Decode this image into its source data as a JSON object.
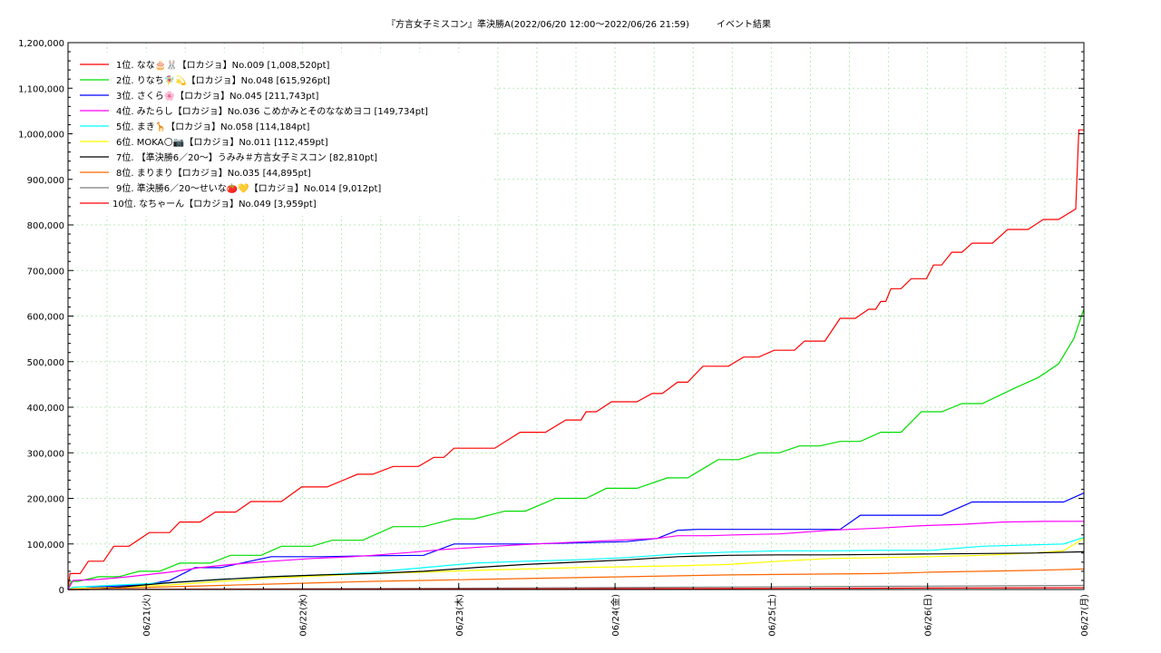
{
  "chart_data": {
    "type": "line",
    "title": "『方言女子ミスコン』準決勝A(2022/06/20 12:00～2022/06/26 21:59)　　　イベント結果",
    "xlabel": "",
    "ylabel": "",
    "ylim": [
      0,
      1200000
    ],
    "xlim": [
      "2022-06-20 12:00",
      "2022-06-27 00:00"
    ],
    "x_ticks": [
      "06/21(火)",
      "06/22(水)",
      "06/23(木)",
      "06/24(金)",
      "06/25(土)",
      "06/26(日)",
      "06/27(月)"
    ],
    "y_ticks": [
      "0",
      "100,000",
      "200,000",
      "300,000",
      "400,000",
      "500,000",
      "600,000",
      "700,000",
      "800,000",
      "900,000",
      "1,000,000",
      "1,100,000",
      "1,200,000"
    ],
    "grid": true,
    "legend_position": "top-left",
    "series": [
      {
        "name": "1位. なな🎂🐰【ロカジョ】No.009 [1,008,520pt]",
        "color": "#ff0000",
        "x": [
          0,
          0.02,
          0.12,
          0.2,
          0.35,
          0.45,
          0.6,
          0.8,
          1.0,
          1.1,
          1.3,
          1.45,
          1.65,
          1.8,
          2.1,
          2.3,
          2.55,
          2.85,
          3.0,
          3.2,
          3.45,
          3.6,
          3.7,
          3.8,
          4.2,
          4.45,
          4.7,
          4.9,
          5.05,
          5.1,
          5.2,
          5.35,
          5.6,
          5.75,
          5.85,
          6.0,
          6.1,
          6.25,
          6.5,
          6.65,
          6.8,
          6.95,
          7.15,
          7.25,
          7.45,
          7.6,
          7.75,
          7.88,
          7.95,
          8.0,
          8.05,
          8.1,
          8.2,
          8.3,
          8.45,
          8.52,
          8.6,
          8.7,
          8.8,
          8.9,
          9.1,
          9.25,
          9.45,
          9.6,
          9.75,
          9.92,
          9.95,
          10.0
        ],
        "y": [
          0,
          35000,
          35000,
          62000,
          62000,
          95000,
          95000,
          125000,
          125000,
          148000,
          148000,
          170000,
          170000,
          193000,
          193000,
          225000,
          225000,
          253000,
          253000,
          270000,
          270000,
          290000,
          290000,
          310000,
          310000,
          345000,
          345000,
          372000,
          372000,
          390000,
          390000,
          412000,
          412000,
          430000,
          430000,
          455000,
          455000,
          490000,
          490000,
          510000,
          510000,
          525000,
          525000,
          545000,
          545000,
          595000,
          595000,
          615000,
          615000,
          632000,
          632000,
          660000,
          660000,
          682000,
          682000,
          712000,
          712000,
          740000,
          740000,
          760000,
          760000,
          790000,
          790000,
          812000,
          812000,
          835000,
          1008520,
          1008520
        ]
      },
      {
        "name": "2位. りなち🧚‍♀️💫【ロカジョ】No.048 [615,926pt]",
        "color": "#00dd00",
        "x": [
          0,
          0.03,
          0.1,
          0.3,
          0.5,
          0.7,
          0.9,
          1.1,
          1.4,
          1.6,
          1.9,
          2.1,
          2.4,
          2.6,
          2.9,
          3.2,
          3.5,
          3.8,
          4.0,
          4.3,
          4.5,
          4.8,
          5.1,
          5.3,
          5.6,
          5.9,
          6.1,
          6.4,
          6.6,
          6.8,
          7.0,
          7.2,
          7.4,
          7.6,
          7.8,
          8.0,
          8.2,
          8.4,
          8.6,
          8.8,
          9.0,
          9.3,
          9.55,
          9.75,
          9.9,
          10.0
        ],
        "y": [
          0,
          18000,
          18000,
          28000,
          28000,
          40000,
          40000,
          58000,
          58000,
          75000,
          75000,
          95000,
          95000,
          108000,
          108000,
          138000,
          138000,
          155000,
          155000,
          172000,
          172000,
          200000,
          200000,
          222000,
          222000,
          245000,
          245000,
          285000,
          285000,
          300000,
          300000,
          315000,
          315000,
          325000,
          325000,
          345000,
          345000,
          390000,
          390000,
          408000,
          408000,
          440000,
          465000,
          495000,
          550000,
          615926
        ]
      },
      {
        "name": "3位. さくら🌸【ロカジョ】No.045 [211,743pt]",
        "color": "#0000ff",
        "x": [
          0,
          0.05,
          0.25,
          0.5,
          0.8,
          1.0,
          1.25,
          1.5,
          2.0,
          2.5,
          3.0,
          3.5,
          3.8,
          4.2,
          4.5,
          5.0,
          5.5,
          5.8,
          6.0,
          6.2,
          6.5,
          6.8,
          7.0,
          7.3,
          7.6,
          7.8,
          8.0,
          8.3,
          8.6,
          8.9,
          9.2,
          9.5,
          9.8,
          10.0
        ],
        "y": [
          0,
          0,
          5000,
          8000,
          12000,
          20000,
          48000,
          48000,
          72000,
          72000,
          74000,
          75000,
          100000,
          100000,
          100000,
          102000,
          105000,
          112000,
          130000,
          132000,
          132000,
          132000,
          132000,
          132000,
          132000,
          163000,
          163000,
          163000,
          163000,
          192000,
          192000,
          192000,
          192000,
          211743
        ]
      },
      {
        "name": "4位. みたらし【ロカジョ】No.036 こめかみとそのななめヨコ [149,734pt]",
        "color": "#ff00ff",
        "x": [
          0,
          0.05,
          0.3,
          0.6,
          1.0,
          1.3,
          1.6,
          2.0,
          2.4,
          2.8,
          3.0,
          3.4,
          3.7,
          4.2,
          4.6,
          5.0,
          5.4,
          5.8,
          6.0,
          6.3,
          6.6,
          7.0,
          7.5,
          8.0,
          8.4,
          8.8,
          9.2,
          9.6,
          10.0
        ],
        "y": [
          0,
          20000,
          22000,
          28000,
          38000,
          48000,
          55000,
          62000,
          68000,
          72000,
          75000,
          82000,
          88000,
          95000,
          100000,
          104000,
          108000,
          112000,
          118000,
          118000,
          120000,
          122000,
          130000,
          135000,
          140000,
          143000,
          148000,
          149500,
          149734
        ]
      },
      {
        "name": "5位. まき🦒【ロカジョ】No.058 [114,184pt]",
        "color": "#00ffff",
        "x": [
          0,
          0.05,
          0.5,
          1.0,
          1.5,
          2.0,
          2.5,
          3.0,
          3.5,
          4.0,
          4.5,
          5.0,
          5.5,
          6.0,
          6.5,
          7.0,
          7.5,
          8.0,
          8.5,
          9.0,
          9.5,
          9.8,
          10.0
        ],
        "y": [
          0,
          5000,
          10000,
          15000,
          22000,
          28000,
          32000,
          38000,
          48000,
          58000,
          62000,
          65000,
          70000,
          78000,
          82000,
          85000,
          85000,
          86000,
          86000,
          95000,
          98000,
          100000,
          114184
        ]
      },
      {
        "name": "6位. MOKA🌕📷【ロカジョ】No.011 [112,459pt]",
        "color": "#ffff00",
        "x": [
          0,
          0.05,
          0.5,
          1.0,
          1.5,
          2.0,
          2.5,
          3.0,
          3.5,
          4.0,
          4.5,
          5.0,
          5.5,
          6.0,
          6.5,
          7.0,
          7.5,
          8.0,
          8.5,
          9.0,
          9.5,
          9.8,
          10.0
        ],
        "y": [
          0,
          2000,
          5000,
          10000,
          18000,
          25000,
          30000,
          35000,
          38000,
          42000,
          45000,
          48000,
          50000,
          52000,
          55000,
          62000,
          68000,
          70000,
          72000,
          75000,
          80000,
          85000,
          112459
        ]
      },
      {
        "name": "7位. 【準決勝6／20〜】うみみ＃方言女子ミスコン [82,810pt]",
        "color": "#000000",
        "x": [
          0,
          0.2,
          0.5,
          1.0,
          1.5,
          2.0,
          2.5,
          3.0,
          3.5,
          4.0,
          4.5,
          5.0,
          5.5,
          6.0,
          6.5,
          7.0,
          7.5,
          8.0,
          8.5,
          9.0,
          9.5,
          10.0
        ],
        "y": [
          0,
          0,
          5000,
          15000,
          22000,
          28000,
          32000,
          35000,
          40000,
          48000,
          55000,
          60000,
          65000,
          72000,
          75000,
          76000,
          76000,
          77000,
          78000,
          79000,
          80000,
          82810
        ]
      },
      {
        "name": "8位. まりまり【ロカジョ】No.035 [44,895pt]",
        "color": "#ff6600",
        "x": [
          0,
          0.5,
          1.0,
          1.5,
          2.0,
          2.5,
          3.0,
          3.5,
          4.0,
          4.5,
          5.0,
          5.5,
          6.0,
          6.5,
          7.0,
          7.5,
          8.0,
          8.5,
          9.0,
          9.5,
          10.0
        ],
        "y": [
          0,
          3000,
          6000,
          9000,
          12000,
          15000,
          18000,
          20000,
          22000,
          24000,
          26000,
          28000,
          30000,
          32000,
          33000,
          34000,
          35000,
          38000,
          40000,
          42000,
          44895
        ]
      },
      {
        "name": "9位. 準決勝6／20〜せいな🍅💛【ロカジョ】No.014 [9,012pt]",
        "color": "#7f7f7f",
        "x": [
          0,
          2.0,
          4.0,
          6.0,
          8.0,
          10.0
        ],
        "y": [
          0,
          1500,
          3000,
          5000,
          7000,
          9012
        ]
      },
      {
        "name": "10位. なちゃーん【ロカジョ】No.049 [3,959pt]",
        "color": "#ff0000",
        "x": [
          0,
          2.0,
          4.0,
          6.0,
          8.0,
          10.0
        ],
        "y": [
          0,
          500,
          1000,
          2000,
          3000,
          3959
        ]
      }
    ]
  }
}
